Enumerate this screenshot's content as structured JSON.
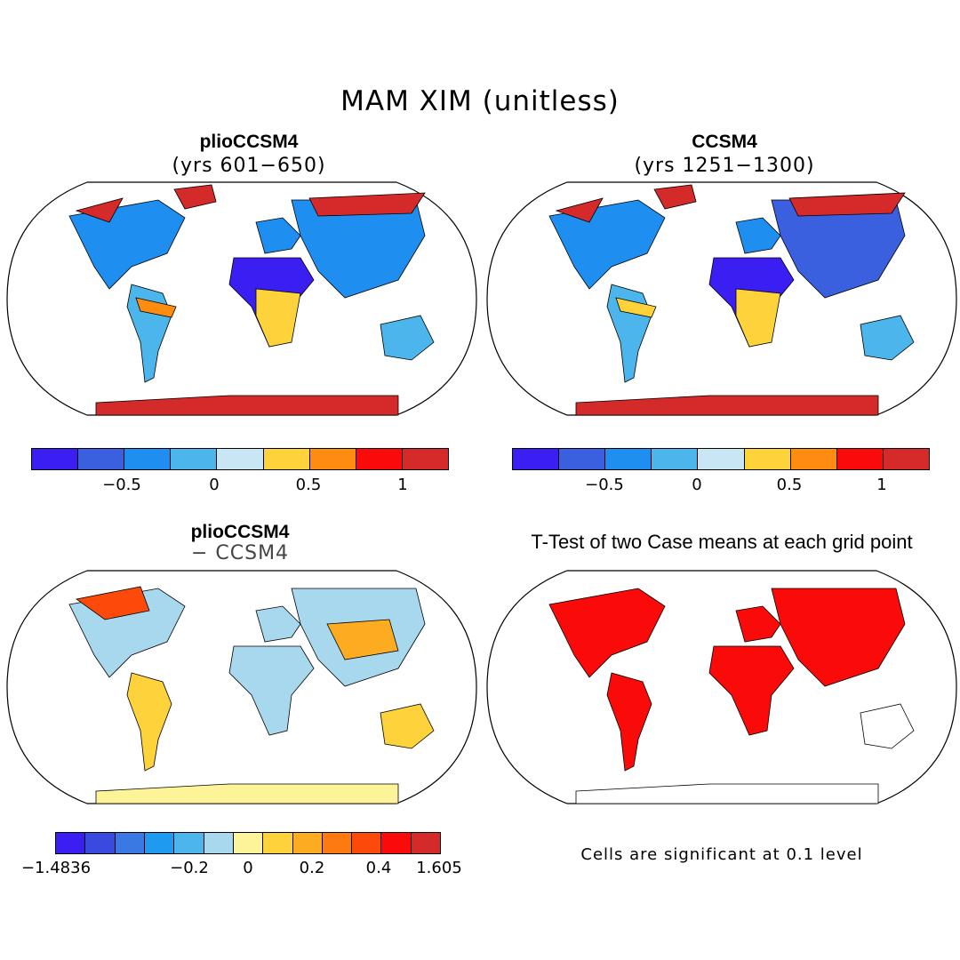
{
  "title": "MAM XIM (unitless)",
  "panels": {
    "p1": {
      "title": "plioCCSM4",
      "subtitle": "(yrs 601−650)"
    },
    "p2": {
      "title": "CCSM4",
      "subtitle": "(yrs 1251−1300)"
    },
    "p3": {
      "title": "plioCCSM4",
      "subtitle": "− CCSM4"
    },
    "p4": {
      "title": "T-Test of two Case means at each grid point",
      "note": "Cells are significant at 0.1 level"
    }
  },
  "colorbar_top": {
    "colors": [
      "#3b1ef2",
      "#3a5fdf",
      "#1e8ff0",
      "#4cb5ec",
      "#c8e6f4",
      "#fdd23a",
      "#fd8c11",
      "#fb0a0a",
      "#d42a2a"
    ],
    "ticks": [
      "−0.5",
      "0",
      "0.5",
      "1"
    ]
  },
  "colorbar_bottom": {
    "colors": [
      "#3b1ef2",
      "#3a4ae0",
      "#3a78e4",
      "#1e9af0",
      "#4cb5ec",
      "#a8d8ee",
      "#fdf49a",
      "#fdd23a",
      "#fdab20",
      "#fd7a11",
      "#fb4a0a",
      "#fb0a0a",
      "#d42a2a"
    ],
    "ticks": [
      "−1.4836",
      "−0.2",
      "0",
      "0.2",
      "0.4",
      "1.605"
    ]
  },
  "map_colors": {
    "ocean": "#ffffff",
    "coast": "#000000",
    "significant": "#fb0a0a"
  }
}
